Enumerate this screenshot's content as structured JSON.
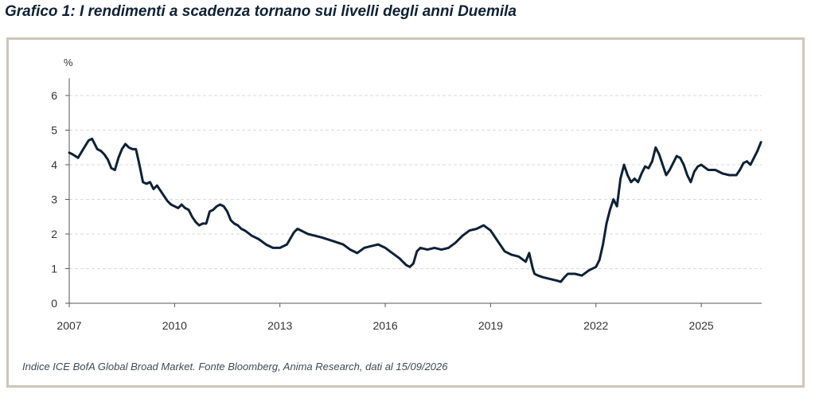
{
  "title": "Grafico 1: I rendimenti a scadenza tornano sui livelli degli anni Duemila",
  "note": "Indice ICE BofA Global Broad Market. Fonte Bloomberg, Anima Research, dati al 15/09/2026",
  "colors": {
    "line": "#0d2137",
    "frame": "#cdc6b8",
    "grid": "#d9d9d9",
    "text": "#333333"
  },
  "chart_data": {
    "type": "line",
    "title": "Grafico 1: I rendimenti a scadenza tornano sui livelli degli anni Duemila",
    "ylabel": "%",
    "xlabel": "",
    "ylim": [
      0,
      6.5
    ],
    "xlim": [
      2007.0,
      2026.72
    ],
    "yticks": [
      "0",
      "1",
      "2",
      "3",
      "4",
      "5",
      "6"
    ],
    "xticks": [
      "2007",
      "2010",
      "2013",
      "2016",
      "2019",
      "2022",
      "2025"
    ],
    "grid": "horizontal dashed",
    "legend": "none",
    "series": [
      {
        "x": [
          2007.0,
          2007.1,
          2007.25,
          2007.4,
          2007.55,
          2007.65,
          2007.8,
          2007.9,
          2008.0,
          2008.1,
          2008.2,
          2008.3,
          2008.4,
          2008.5,
          2008.6,
          2008.7,
          2008.8,
          2008.9,
          2009.0,
          2009.1,
          2009.2,
          2009.3,
          2009.4,
          2009.5,
          2009.6,
          2009.7,
          2009.8,
          2009.9,
          2010.0,
          2010.1,
          2010.2,
          2010.3,
          2010.4,
          2010.5,
          2010.6,
          2010.7,
          2010.8,
          2010.9,
          2011.0,
          2011.1,
          2011.2,
          2011.3,
          2011.4,
          2011.5,
          2011.6,
          2011.7,
          2011.8,
          2011.9,
          2012.0,
          2012.2,
          2012.4,
          2012.6,
          2012.8,
          2013.0,
          2013.2,
          2013.4,
          2013.5,
          2013.6,
          2013.7,
          2013.8,
          2014.0,
          2014.2,
          2014.5,
          2014.8,
          2015.0,
          2015.2,
          2015.4,
          2015.6,
          2015.8,
          2016.0,
          2016.2,
          2016.4,
          2016.5,
          2016.6,
          2016.7,
          2016.8,
          2016.9,
          2017.0,
          2017.2,
          2017.4,
          2017.6,
          2017.8,
          2018.0,
          2018.2,
          2018.4,
          2018.6,
          2018.8,
          2019.0,
          2019.2,
          2019.4,
          2019.6,
          2019.8,
          2020.0,
          2020.1,
          2020.2,
          2020.25,
          2020.35,
          2020.5,
          2020.7,
          2020.9,
          2021.0,
          2021.1,
          2021.2,
          2021.4,
          2021.6,
          2021.8,
          2022.0,
          2022.1,
          2022.2,
          2022.3,
          2022.4,
          2022.5,
          2022.6,
          2022.7,
          2022.8,
          2022.9,
          2023.0,
          2023.1,
          2023.2,
          2023.3,
          2023.4,
          2023.5,
          2023.6,
          2023.7,
          2023.8,
          2023.9,
          2024.0,
          2024.1,
          2024.2,
          2024.3,
          2024.4,
          2024.5,
          2024.6,
          2024.7,
          2024.8,
          2024.9,
          2025.0,
          2025.2,
          2025.4,
          2025.6,
          2025.8,
          2026.0,
          2026.1,
          2026.2,
          2026.3,
          2026.4,
          2026.5,
          2026.6,
          2026.7
        ],
        "values": [
          4.35,
          4.3,
          4.2,
          4.45,
          4.7,
          4.75,
          4.45,
          4.4,
          4.3,
          4.15,
          3.9,
          3.85,
          4.2,
          4.45,
          4.6,
          4.5,
          4.45,
          4.45,
          4.0,
          3.5,
          3.45,
          3.5,
          3.3,
          3.4,
          3.25,
          3.1,
          2.95,
          2.85,
          2.8,
          2.75,
          2.85,
          2.75,
          2.7,
          2.5,
          2.35,
          2.25,
          2.3,
          2.3,
          2.65,
          2.7,
          2.8,
          2.85,
          2.8,
          2.65,
          2.4,
          2.3,
          2.25,
          2.15,
          2.1,
          1.95,
          1.85,
          1.7,
          1.6,
          1.6,
          1.7,
          2.05,
          2.15,
          2.1,
          2.05,
          2.0,
          1.95,
          1.9,
          1.8,
          1.7,
          1.55,
          1.45,
          1.6,
          1.65,
          1.7,
          1.6,
          1.45,
          1.3,
          1.2,
          1.1,
          1.05,
          1.15,
          1.5,
          1.6,
          1.55,
          1.6,
          1.55,
          1.6,
          1.75,
          1.95,
          2.1,
          2.15,
          2.25,
          2.1,
          1.8,
          1.5,
          1.4,
          1.35,
          1.2,
          1.45,
          1.0,
          0.85,
          0.8,
          0.75,
          0.7,
          0.65,
          0.62,
          0.75,
          0.85,
          0.85,
          0.8,
          0.95,
          1.05,
          1.25,
          1.7,
          2.3,
          2.7,
          3.0,
          2.8,
          3.6,
          4.0,
          3.7,
          3.5,
          3.6,
          3.5,
          3.75,
          3.95,
          3.9,
          4.1,
          4.5,
          4.3,
          4.0,
          3.7,
          3.85,
          4.05,
          4.25,
          4.2,
          4.0,
          3.7,
          3.5,
          3.8,
          3.95,
          4.0,
          3.85,
          3.85,
          3.75,
          3.7,
          3.7,
          3.85,
          4.05,
          4.1,
          4.0,
          4.2,
          4.4,
          4.65
        ]
      }
    ]
  }
}
